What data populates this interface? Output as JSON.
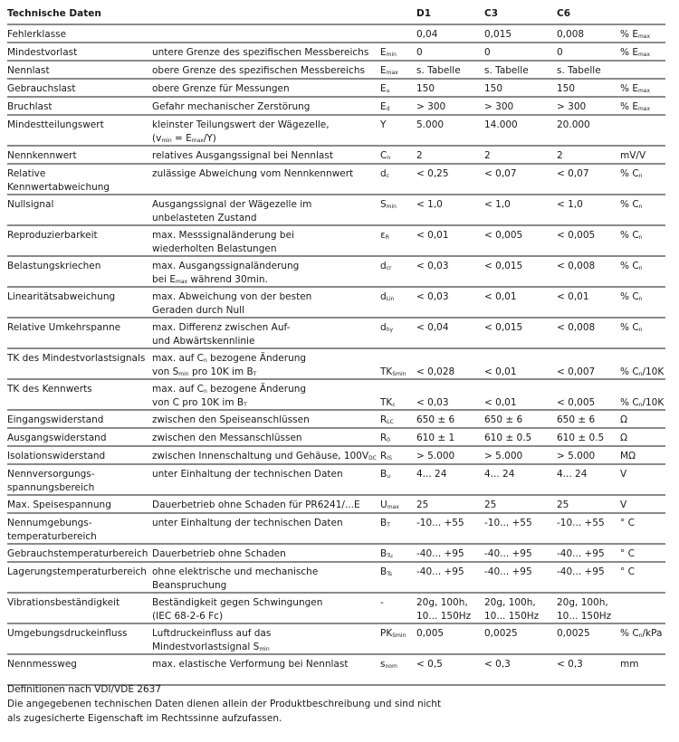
{
  "header": {
    "title": "Technische Daten",
    "columns": [
      "D1",
      "C3",
      "C6"
    ]
  },
  "rows": [
    {
      "label": [
        "Fehlerklasse"
      ],
      "desc": [],
      "sym": {
        "b": "",
        "s": ""
      },
      "vals": [
        [
          "0,04"
        ],
        [
          "0,015"
        ],
        [
          "0,008"
        ]
      ],
      "unit": [
        {
          "t": "% E"
        },
        {
          "s": "max"
        }
      ]
    },
    {
      "label": [
        "Mindestvorlast"
      ],
      "desc": [
        [
          {
            "t": "untere Grenze des spezifischen Messbereichs"
          }
        ]
      ],
      "sym": {
        "b": "E",
        "s": "min"
      },
      "vals": [
        [
          "0"
        ],
        [
          "0"
        ],
        [
          "0"
        ]
      ],
      "unit": [
        {
          "t": "% E"
        },
        {
          "s": "max"
        }
      ]
    },
    {
      "label": [
        "Nennlast"
      ],
      "desc": [
        [
          {
            "t": "obere Grenze des spezifischen Messbereichs"
          }
        ]
      ],
      "sym": {
        "b": "E",
        "s": "max"
      },
      "vals": [
        [
          "s. Tabelle"
        ],
        [
          "s. Tabelle"
        ],
        [
          "s. Tabelle"
        ]
      ],
      "unit": []
    },
    {
      "label": [
        "Gebrauchslast"
      ],
      "desc": [
        [
          {
            "t": "obere Grenze für Messungen"
          }
        ]
      ],
      "sym": {
        "b": "E",
        "s": "u"
      },
      "vals": [
        [
          "150"
        ],
        [
          "150"
        ],
        [
          "150"
        ]
      ],
      "unit": [
        {
          "t": "% E"
        },
        {
          "s": "max"
        }
      ]
    },
    {
      "label": [
        "Bruchlast"
      ],
      "desc": [
        [
          {
            "t": "Gefahr mechanischer Zerstörung"
          }
        ]
      ],
      "sym": {
        "b": "E",
        "s": "d"
      },
      "vals": [
        [
          "> 300"
        ],
        [
          "> 300"
        ],
        [
          "> 300"
        ]
      ],
      "unit": [
        {
          "t": "% E"
        },
        {
          "s": "max"
        }
      ]
    },
    {
      "label": [
        "Mindestteilungswert"
      ],
      "desc": [
        [
          {
            "t": "kleinster Teilungswert der Wägezelle,"
          }
        ],
        [
          {
            "t": "(v"
          },
          {
            "s": "min"
          },
          {
            "t": " = E"
          },
          {
            "s": "max"
          },
          {
            "t": "/Y)"
          }
        ]
      ],
      "sym": {
        "b": "Y",
        "s": ""
      },
      "vals": [
        [
          "5.000"
        ],
        [
          "14.000"
        ],
        [
          "20.000"
        ]
      ],
      "unit": []
    },
    {
      "label": [
        "Nennkennwert"
      ],
      "desc": [
        [
          {
            "t": "relatives Ausgangssignal bei Nennlast"
          }
        ]
      ],
      "sym": {
        "b": "C",
        "s": "n"
      },
      "vals": [
        [
          "2"
        ],
        [
          "2"
        ],
        [
          "2"
        ]
      ],
      "unit": [
        {
          "t": "mV/V"
        }
      ]
    },
    {
      "label": [
        "Relative",
        "Kennwertabweichung"
      ],
      "desc": [
        [
          {
            "t": "zulässige Abweichung vom Nennkennwert"
          }
        ]
      ],
      "sym": {
        "b": "d",
        "s": "c"
      },
      "vals": [
        [
          "< 0,25"
        ],
        [
          "< 0,07"
        ],
        [
          "< 0,07"
        ]
      ],
      "unit": [
        {
          "t": "% C"
        },
        {
          "s": "n"
        }
      ]
    },
    {
      "label": [
        "Nullsignal"
      ],
      "desc": [
        [
          {
            "t": "Ausgangssignal der Wägezelle im"
          }
        ],
        [
          {
            "t": "unbelasteten Zustand"
          }
        ]
      ],
      "sym": {
        "b": "S",
        "s": "min"
      },
      "vals": [
        [
          "< 1,0"
        ],
        [
          "< 1,0"
        ],
        [
          "< 1,0"
        ]
      ],
      "unit": [
        {
          "t": "% C"
        },
        {
          "s": "n"
        }
      ]
    },
    {
      "label": [
        "Reproduzierbarkeit"
      ],
      "desc": [
        [
          {
            "t": "max. Messsignaländerung bei"
          }
        ],
        [
          {
            "t": "wiederholten Belastungen"
          }
        ]
      ],
      "sym": {
        "b": "ε",
        "s": "R"
      },
      "vals": [
        [
          "< 0,01"
        ],
        [
          "< 0,005"
        ],
        [
          "< 0,005"
        ]
      ],
      "unit": [
        {
          "t": "% C"
        },
        {
          "s": "n"
        }
      ]
    },
    {
      "label": [
        "Belastungskriechen"
      ],
      "desc": [
        [
          {
            "t": "max. Ausgangssignaländerung"
          }
        ],
        [
          {
            "t": "bei E"
          },
          {
            "s": "max"
          },
          {
            "t": " während 30min."
          }
        ]
      ],
      "sym": {
        "b": "d",
        "s": "cr"
      },
      "vals": [
        [
          "< 0,03"
        ],
        [
          "< 0,015"
        ],
        [
          "< 0,008"
        ]
      ],
      "unit": [
        {
          "t": "% C"
        },
        {
          "s": "n"
        }
      ]
    },
    {
      "label": [
        "Linearitätsabweichung"
      ],
      "desc": [
        [
          {
            "t": "max. Abweichung von der besten"
          }
        ],
        [
          {
            "t": "Geraden durch Null"
          }
        ]
      ],
      "sym": {
        "b": "d",
        "s": "Lin"
      },
      "vals": [
        [
          "< 0,03"
        ],
        [
          "< 0,01"
        ],
        [
          "< 0,01"
        ]
      ],
      "unit": [
        {
          "t": "% C"
        },
        {
          "s": "n"
        }
      ]
    },
    {
      "label": [
        "Relative Umkehrspanne"
      ],
      "desc": [
        [
          {
            "t": "max. Differenz zwischen Auf-"
          }
        ],
        [
          {
            "t": "und Abwärtskennlinie"
          }
        ]
      ],
      "sym": {
        "b": "d",
        "s": "hy"
      },
      "vals": [
        [
          "< 0,04"
        ],
        [
          "< 0,015"
        ],
        [
          "< 0,008"
        ]
      ],
      "unit": [
        {
          "t": "% C"
        },
        {
          "s": "n"
        }
      ]
    },
    {
      "label": [
        "TK des Mindestvorlastsignals"
      ],
      "desc": [
        [
          {
            "t": "max. auf C"
          },
          {
            "s": "n"
          },
          {
            "t": " bezogene Änderung"
          }
        ],
        [
          {
            "t": "von S"
          },
          {
            "s": "min"
          },
          {
            "t": " pro 10K im B"
          },
          {
            "s": "T"
          }
        ]
      ],
      "sym": {
        "b": "TK",
        "s": "Smin"
      },
      "second": true,
      "vals": [
        [
          "< 0,028"
        ],
        [
          "< 0,01"
        ],
        [
          "< 0,007"
        ]
      ],
      "unit": [
        {
          "t": "% C"
        },
        {
          "s": "n"
        },
        {
          "t": "/10K"
        }
      ]
    },
    {
      "label": [
        "TK des Kennwerts"
      ],
      "desc": [
        [
          {
            "t": "max. auf C"
          },
          {
            "s": "n"
          },
          {
            "t": " bezogene Änderung"
          }
        ],
        [
          {
            "t": "von C pro 10K im B"
          },
          {
            "s": "T"
          }
        ]
      ],
      "sym": {
        "b": "TK",
        "s": "c"
      },
      "second": true,
      "vals": [
        [
          "< 0,03"
        ],
        [
          "< 0,01"
        ],
        [
          "< 0,005"
        ]
      ],
      "unit": [
        {
          "t": "% C"
        },
        {
          "s": "n"
        },
        {
          "t": "/10K"
        }
      ]
    },
    {
      "label": [
        "Eingangswiderstand"
      ],
      "desc": [
        [
          {
            "t": "zwischen den Speiseanschlüssen"
          }
        ]
      ],
      "sym": {
        "b": "R",
        "s": "LC"
      },
      "vals": [
        [
          "650 ± 6"
        ],
        [
          "650 ± 6"
        ],
        [
          "650 ± 6"
        ]
      ],
      "unit": [
        {
          "t": "Ω"
        }
      ]
    },
    {
      "label": [
        "Ausgangswiderstand"
      ],
      "desc": [
        [
          {
            "t": "zwischen den Messanschlüssen"
          }
        ]
      ],
      "sym": {
        "b": "R",
        "s": "0"
      },
      "vals": [
        [
          "610 ± 1"
        ],
        [
          "610 ± 0.5"
        ],
        [
          "610 ± 0.5"
        ]
      ],
      "unit": [
        {
          "t": "Ω"
        }
      ]
    },
    {
      "label": [
        "Isolationswiderstand"
      ],
      "desc": [
        [
          {
            "t": "zwischen Innenschaltung und Gehäuse, 100V"
          },
          {
            "s": "DC"
          }
        ]
      ],
      "sym": {
        "b": "R",
        "s": "IS"
      },
      "vals": [
        [
          "> 5.000"
        ],
        [
          "> 5.000"
        ],
        [
          "> 5.000"
        ]
      ],
      "unit": [
        {
          "t": "MΩ"
        }
      ]
    },
    {
      "label": [
        "Nennversorgungs-",
        "spannungsbereich"
      ],
      "desc": [
        [
          {
            "t": "unter Einhaltung der technischen Daten"
          }
        ]
      ],
      "sym": {
        "b": "B",
        "s": "u"
      },
      "vals": [
        [
          "4... 24"
        ],
        [
          "4... 24"
        ],
        [
          "4... 24"
        ]
      ],
      "unit": [
        {
          "t": "V"
        }
      ]
    },
    {
      "label": [
        "Max. Speisespannung"
      ],
      "desc": [
        [
          {
            "t": "Dauerbetrieb ohne Schaden für PR6241/...E"
          }
        ]
      ],
      "sym": {
        "b": "U",
        "s": "max"
      },
      "vals": [
        [
          "25"
        ],
        [
          "25"
        ],
        [
          "25"
        ]
      ],
      "unit": [
        {
          "t": "V"
        }
      ]
    },
    {
      "label": [
        "Nennumgebungs-",
        "temperaturbereich"
      ],
      "desc": [
        [
          {
            "t": "unter Einhaltung der technischen Daten"
          }
        ]
      ],
      "sym": {
        "b": "B",
        "s": "T"
      },
      "vals": [
        [
          "-10... +55"
        ],
        [
          "-10... +55"
        ],
        [
          "-10... +55"
        ]
      ],
      "unit": [
        {
          "t": "° C"
        }
      ]
    },
    {
      "label": [
        "Gebrauchstemperaturbereich"
      ],
      "desc": [
        [
          {
            "t": "Dauerbetrieb ohne Schaden"
          }
        ]
      ],
      "sym": {
        "b": "B",
        "s": "Tu"
      },
      "vals": [
        [
          "-40... +95"
        ],
        [
          "-40... +95"
        ],
        [
          "-40... +95"
        ]
      ],
      "unit": [
        {
          "t": "° C"
        }
      ]
    },
    {
      "label": [
        "Lagerungstemperaturbereich"
      ],
      "desc": [
        [
          {
            "t": "ohne elektrische und mechanische"
          }
        ],
        [
          {
            "t": "Beanspruchung"
          }
        ]
      ],
      "sym": {
        "b": "B",
        "s": "Ts"
      },
      "vals": [
        [
          "-40... +95"
        ],
        [
          "-40... +95"
        ],
        [
          "-40... +95"
        ]
      ],
      "unit": [
        {
          "t": "° C"
        }
      ]
    },
    {
      "label": [
        "Vibrationsbeständigkeit"
      ],
      "desc": [
        [
          {
            "t": "Beständigkeit gegen Schwingungen"
          }
        ],
        [
          {
            "t": "(IEC 68-2-6 Fc)"
          }
        ]
      ],
      "sym": {
        "b": "-",
        "s": ""
      },
      "vals": [
        [
          "20g, 100h,",
          "10... 150Hz"
        ],
        [
          "20g, 100h,",
          "10... 150Hz"
        ],
        [
          "20g, 100h,",
          "10... 150Hz"
        ]
      ],
      "unit": []
    },
    {
      "label": [
        "Umgebungsdruckeinfluss"
      ],
      "desc": [
        [
          {
            "t": "Luftdruckeinfluss auf das"
          }
        ],
        [
          {
            "t": "Mindestvorlastsignal S"
          },
          {
            "s": "min"
          }
        ]
      ],
      "sym": {
        "b": "PK",
        "s": "Smin"
      },
      "vals": [
        [
          "0,005"
        ],
        [
          "0,0025"
        ],
        [
          "0,0025"
        ]
      ],
      "unit": [
        {
          "t": "% C"
        },
        {
          "s": "n"
        },
        {
          "t": "/kPa"
        }
      ]
    },
    {
      "label": [
        "Nennmessweg"
      ],
      "desc": [
        [
          {
            "t": "max. elastische Verformung bei Nennlast"
          }
        ]
      ],
      "sym": {
        "b": "s",
        "s": "nom"
      },
      "vals": [
        [
          " < 0,5"
        ],
        [
          "< 0,3"
        ],
        [
          "< 0,3"
        ]
      ],
      "unit": [
        {
          "t": "mm"
        }
      ],
      "h2": true
    }
  ],
  "footer": [
    "Definitionen nach VDI/VDE 2637",
    "Die angegebenen technischen Daten dienen allein der Produktbeschreibung und sind nicht",
    "als zugesicherte Eigenschaft im Rechtssinne aufzufassen."
  ]
}
